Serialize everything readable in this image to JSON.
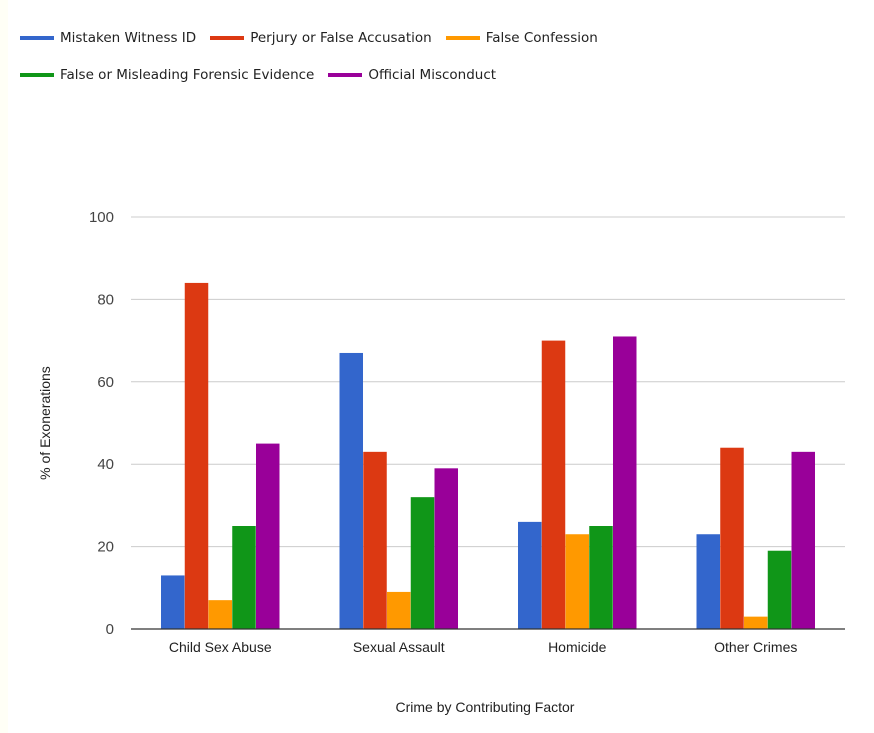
{
  "chart_data": {
    "type": "bar",
    "xlabel": "Crime by Contributing Factor",
    "ylabel": "% of Exonerations",
    "ylim": [
      0,
      100
    ],
    "yticks": [
      0,
      20,
      40,
      60,
      80,
      100
    ],
    "grid": true,
    "legend_position": "top",
    "categories": [
      "Child Sex Abuse",
      "Sexual Assault",
      "Homicide",
      "Other Crimes"
    ],
    "series": [
      {
        "name": "Mistaken Witness ID",
        "color": "#3366cc",
        "values": [
          13,
          67,
          26,
          23
        ]
      },
      {
        "name": "Perjury or False Accusation",
        "color": "#dc3912",
        "values": [
          84,
          43,
          70,
          44
        ]
      },
      {
        "name": "False Confession",
        "color": "#ff9900",
        "values": [
          7,
          9,
          23,
          3
        ]
      },
      {
        "name": "False or Misleading Forensic Evidence",
        "color": "#109618",
        "values": [
          25,
          32,
          25,
          19
        ]
      },
      {
        "name": "Official Misconduct",
        "color": "#990099",
        "values": [
          45,
          39,
          71,
          43
        ]
      }
    ]
  }
}
